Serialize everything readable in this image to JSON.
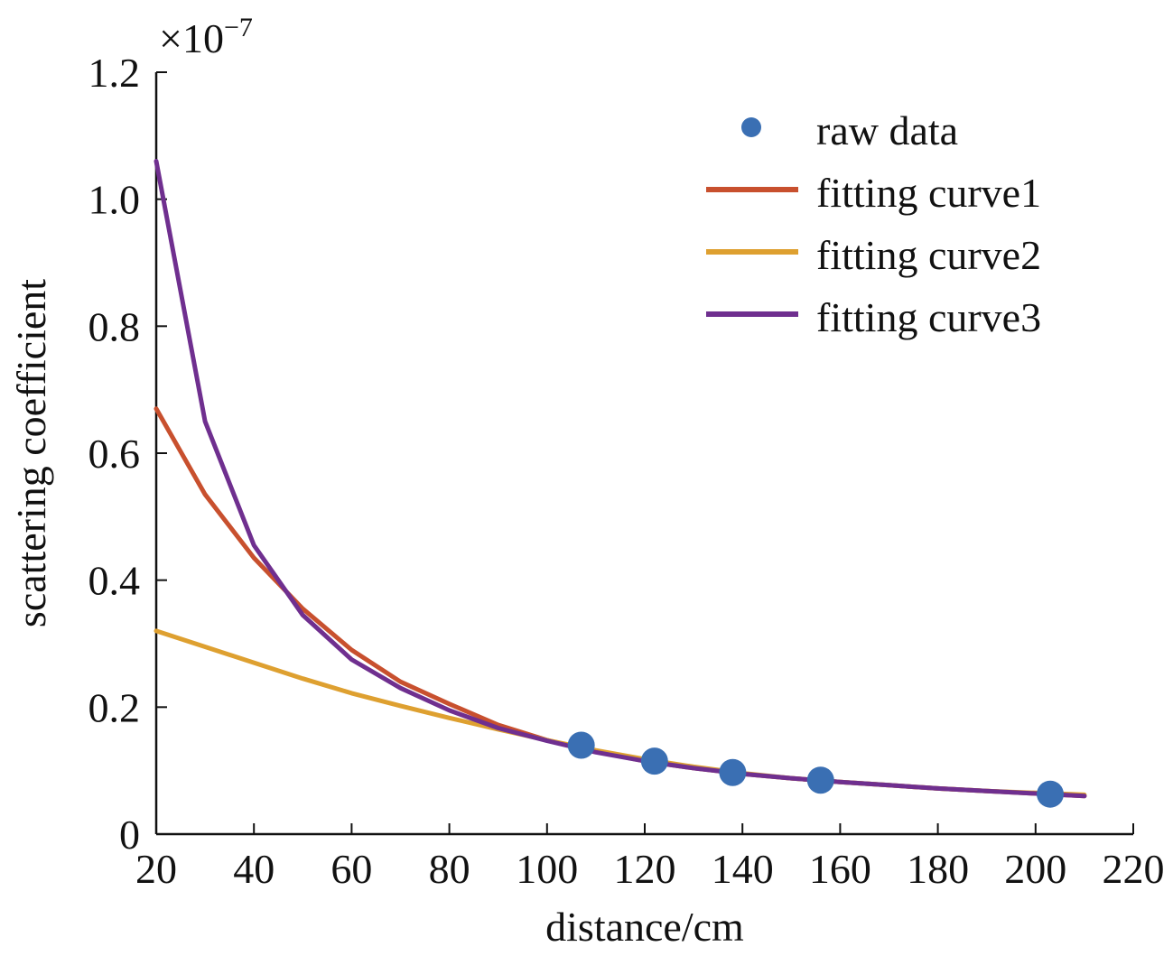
{
  "chart_data": {
    "type": "scatter",
    "title": "",
    "xlabel": "distance/cm",
    "ylabel": "scattering coefficient",
    "y_multiplier_label": "×10",
    "y_multiplier_exponent": "−7",
    "xlim": [
      20,
      220
    ],
    "ylim": [
      0,
      1.2
    ],
    "x_ticks": [
      20,
      40,
      60,
      80,
      100,
      120,
      140,
      160,
      180,
      200,
      220
    ],
    "x_tick_labels": [
      "20",
      "40",
      "60",
      "80",
      "100",
      "120",
      "140",
      "160",
      "180",
      "200",
      "220"
    ],
    "y_ticks": [
      0,
      0.2,
      0.4,
      0.6,
      0.8,
      1.0,
      1.2
    ],
    "y_tick_labels": [
      "0",
      "0.2",
      "0.4",
      "0.6",
      "0.8",
      "1.0",
      "1.2"
    ],
    "grid": false,
    "legend_position": "top-right",
    "series": [
      {
        "name": "raw data",
        "kind": "scatter",
        "color": "#3a6fb3",
        "x": [
          107,
          122,
          138,
          156,
          203
        ],
        "y": [
          0.14,
          0.115,
          0.097,
          0.085,
          0.063
        ]
      },
      {
        "name": "fitting curve1",
        "kind": "line",
        "color": "#c8502e",
        "x": [
          20,
          30,
          40,
          50,
          60,
          70,
          80,
          90,
          100,
          110,
          120,
          130,
          140,
          150,
          160,
          170,
          180,
          190,
          200,
          210
        ],
        "y": [
          0.67,
          0.535,
          0.435,
          0.355,
          0.29,
          0.24,
          0.205,
          0.172,
          0.148,
          0.13,
          0.115,
          0.104,
          0.095,
          0.088,
          0.082,
          0.077,
          0.072,
          0.068,
          0.064,
          0.06
        ]
      },
      {
        "name": "fitting curve2",
        "kind": "line",
        "color": "#dea030",
        "x": [
          20,
          30,
          40,
          50,
          60,
          70,
          80,
          90,
          100,
          110,
          120,
          130,
          140,
          150,
          160,
          170,
          180,
          190,
          200,
          210
        ],
        "y": [
          0.32,
          0.295,
          0.27,
          0.245,
          0.222,
          0.202,
          0.183,
          0.165,
          0.148,
          0.132,
          0.118,
          0.106,
          0.096,
          0.088,
          0.082,
          0.077,
          0.072,
          0.068,
          0.065,
          0.062
        ]
      },
      {
        "name": "fitting curve3",
        "kind": "line",
        "color": "#6f2f8f",
        "x": [
          20,
          30,
          40,
          50,
          60,
          70,
          80,
          90,
          100,
          110,
          120,
          130,
          140,
          150,
          160,
          170,
          180,
          190,
          200,
          210
        ],
        "y": [
          1.06,
          0.65,
          0.455,
          0.345,
          0.275,
          0.23,
          0.195,
          0.167,
          0.147,
          0.129,
          0.115,
          0.104,
          0.095,
          0.088,
          0.082,
          0.077,
          0.072,
          0.068,
          0.064,
          0.06
        ]
      }
    ]
  }
}
